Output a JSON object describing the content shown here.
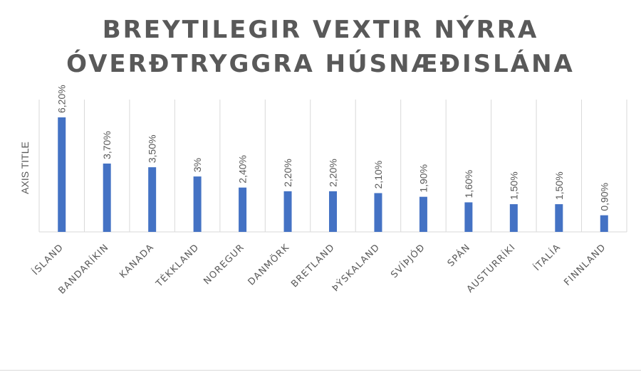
{
  "chart_data": {
    "type": "bar",
    "title_lines": [
      "BREYTILEGIR VEXTIR NÝRRA",
      "ÓVERÐTRYGGRA HÚSNÆÐISLÁNA"
    ],
    "ylabel": "AXIS TITLE",
    "xlabel": "",
    "categories": [
      "ÍSLAND",
      "BANDARÍKIN",
      "KANADA",
      "TÉKKLAND",
      "NOREGUR",
      "DANMÖRK",
      "BRETLAND",
      "ÞÝSKALAND",
      "SVÍÞJÓÐ",
      "SPÁN",
      "AUSTURRÍKI",
      "ÍTALÍA",
      "FINNLAND"
    ],
    "values": [
      6.2,
      3.7,
      3.5,
      3.0,
      2.4,
      2.2,
      2.2,
      2.1,
      1.9,
      1.6,
      1.5,
      1.5,
      0.9
    ],
    "data_labels": [
      "6,20%",
      "3,70%",
      "3,50%",
      "3%",
      "2,40%",
      "2,20%",
      "2,20%",
      "2,10%",
      "1,90%",
      "1,60%",
      "1,50%",
      "1,50%",
      "0,90%"
    ],
    "unit": "%",
    "ylim": [
      0,
      7
    ],
    "grid": "vertical",
    "legend": "none",
    "bar_color": "#4472c4",
    "grid_color": "#d9d9d9",
    "text_color": "#595959"
  }
}
